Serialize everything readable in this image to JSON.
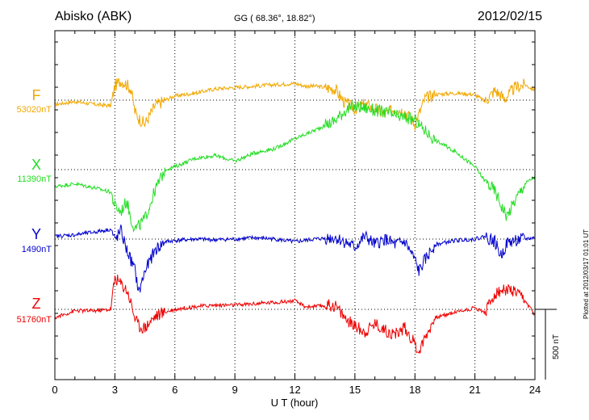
{
  "header": {
    "station": "Abisko (ABK)",
    "coords": "GG ( 68.36°,  18.82°)",
    "date": "2012/02/15"
  },
  "plotted_note": "Plotted at 2012/03/17 01:01 UT",
  "chart_data": {
    "type": "line",
    "title": "Abisko (ABK)",
    "xlabel": "U T (hour)",
    "ylabel": "",
    "xlim": [
      0,
      24
    ],
    "xticks": [
      0,
      3,
      6,
      9,
      12,
      15,
      18,
      21,
      24
    ],
    "grid": true,
    "scale_bar": "500 nT",
    "series": [
      {
        "name": "F",
        "baseline": "53020nT",
        "color": "#f2a800",
        "x": [
          0,
          1,
          2,
          2.8,
          3,
          3.3,
          3.6,
          3.8,
          4,
          4.2,
          4.5,
          5,
          5.5,
          6,
          7,
          8,
          9,
          10,
          11,
          12,
          12.5,
          13,
          14,
          14.5,
          15,
          15.5,
          16,
          16.5,
          17,
          17.5,
          18,
          18.2,
          18.5,
          19,
          20,
          21,
          21.5,
          22,
          22.5,
          23,
          23.5,
          24
        ],
        "y": [
          -30,
          -10,
          -30,
          -40,
          100,
          140,
          110,
          80,
          -80,
          -130,
          -170,
          -40,
          0,
          30,
          50,
          80,
          90,
          100,
          110,
          120,
          100,
          100,
          80,
          -20,
          -60,
          -30,
          -60,
          -100,
          -60,
          -80,
          -170,
          -100,
          10,
          40,
          50,
          40,
          -10,
          70,
          10,
          90,
          110,
          70
        ]
      },
      {
        "name": "X",
        "baseline": "11390nT",
        "color": "#22dd22",
        "x": [
          0,
          1,
          2,
          2.8,
          3,
          3.3,
          3.6,
          3.8,
          4,
          4.2,
          4.5,
          5,
          5.5,
          6,
          7,
          8,
          9,
          10,
          11,
          12,
          13,
          14,
          14.5,
          15,
          15.5,
          16,
          16.5,
          17,
          17.5,
          18,
          18.2,
          18.5,
          19,
          20,
          21,
          21.5,
          22,
          22.3,
          22.6,
          23,
          23.5,
          24
        ],
        "y": [
          -120,
          -100,
          -130,
          -160,
          -260,
          -300,
          -220,
          -350,
          -420,
          -400,
          -350,
          -150,
          0,
          20,
          80,
          100,
          60,
          120,
          150,
          220,
          280,
          350,
          420,
          450,
          440,
          420,
          410,
          380,
          370,
          350,
          320,
          280,
          210,
          130,
          20,
          -80,
          -150,
          -250,
          -330,
          -220,
          -100,
          -50
        ]
      },
      {
        "name": "Y",
        "baseline": "1490nT",
        "color": "#0000cc",
        "x": [
          0,
          1,
          2,
          2.8,
          3,
          3.3,
          3.6,
          3.8,
          4,
          4.2,
          4.5,
          5,
          5.5,
          6,
          7,
          8,
          9,
          10,
          11,
          12,
          13,
          14,
          14.5,
          15,
          15.5,
          16,
          16.5,
          17,
          17.5,
          18,
          18.2,
          18.5,
          19,
          20,
          21,
          21.5,
          22,
          22.3,
          22.6,
          23,
          23.5,
          24
        ],
        "y": [
          20,
          30,
          50,
          70,
          -10,
          60,
          -80,
          -150,
          -220,
          -380,
          -230,
          -80,
          -20,
          -10,
          0,
          -5,
          0,
          10,
          0,
          -20,
          0,
          10,
          -20,
          -60,
          20,
          -40,
          0,
          -40,
          -20,
          -150,
          -230,
          -150,
          -40,
          -10,
          0,
          20,
          -20,
          -120,
          -30,
          -10,
          0,
          10
        ]
      },
      {
        "name": "Z",
        "baseline": "51760nT",
        "color": "#ee0000",
        "x": [
          0,
          1,
          2,
          2.8,
          3,
          3.3,
          3.6,
          3.8,
          4,
          4.2,
          4.5,
          5,
          5.5,
          6,
          7,
          8,
          9,
          10,
          11,
          12,
          12.5,
          13,
          14,
          14.5,
          15,
          15.5,
          16,
          16.5,
          17,
          17.5,
          18,
          18.2,
          18.5,
          19,
          20,
          21,
          21.5,
          22,
          22.5,
          23,
          23.5,
          24
        ],
        "y": [
          -60,
          -10,
          -10,
          0,
          230,
          180,
          140,
          50,
          -60,
          -120,
          -130,
          -50,
          -20,
          0,
          20,
          30,
          30,
          40,
          50,
          60,
          20,
          20,
          30,
          -60,
          -120,
          -160,
          -100,
          -150,
          -180,
          -130,
          -250,
          -300,
          -200,
          -60,
          -20,
          10,
          -20,
          110,
          140,
          120,
          60,
          -40
        ]
      }
    ]
  },
  "axes": {
    "x_ticks": [
      "0",
      "3",
      "6",
      "9",
      "12",
      "15",
      "18",
      "21",
      "24"
    ],
    "x_label": "U T (hour)"
  }
}
